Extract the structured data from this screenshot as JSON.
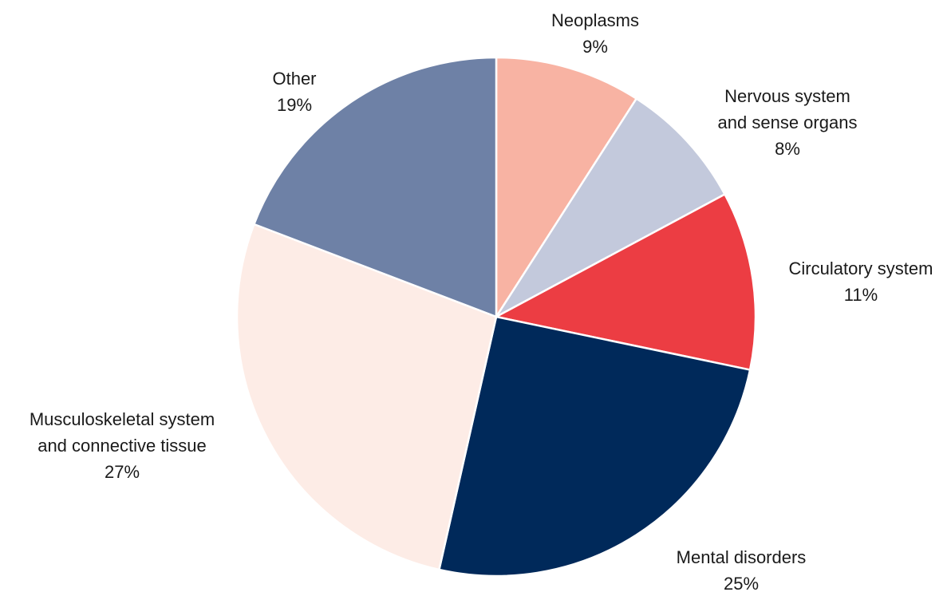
{
  "chart_data": {
    "type": "pie",
    "title": "",
    "slices": [
      {
        "lines": [
          "Neoplasms"
        ],
        "value": 9,
        "value_label": "9%",
        "color": "#f8b3a3"
      },
      {
        "lines": [
          "Nervous system",
          "and sense organs"
        ],
        "value": 8,
        "value_label": "8%",
        "color": "#c3c9dc"
      },
      {
        "lines": [
          "Circulatory system"
        ],
        "value": 11,
        "value_label": "11%",
        "color": "#ec3d43"
      },
      {
        "lines": [
          "Mental disorders"
        ],
        "value": 25,
        "value_label": "25%",
        "color": "#00295a"
      },
      {
        "lines": [
          "Musculoskeletal system",
          "and connective tissue"
        ],
        "value": 27,
        "value_label": "27%",
        "color": "#fdece6"
      },
      {
        "lines": [
          "Other"
        ],
        "value": 19,
        "value_label": "19%",
        "color": "#6e81a6"
      }
    ],
    "start_angle": "12 o'clock",
    "direction": "clockwise",
    "legend": "none"
  }
}
